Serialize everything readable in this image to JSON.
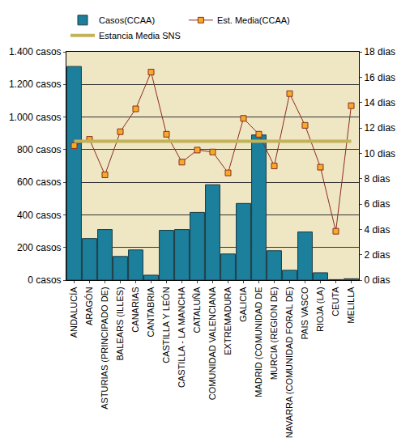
{
  "chart_data": {
    "type": "bar",
    "categories": [
      "ANDALUCÍA",
      "ARAGÓN",
      "ASTURIAS (PRINCIPADO DE)",
      "BALEARS (ILLES)",
      "CANARIAS",
      "CANTABRIA",
      "CASTILLA Y LEÓN",
      "CASTILLA - LA MANCHA",
      "CATALUÑA",
      "COMUNIDAD VALENCIANA",
      "EXTREMADURA",
      "GALICIA",
      "MADRID (COMUNIDAD DE",
      "MURCIA (REGION DE)",
      "NAVARRA (COMUNIDAD FORAL DE)",
      "PAIS VASCO",
      "RIOJA (LA)",
      "CEUTA",
      "MELILLA"
    ],
    "series": [
      {
        "name": "Casos(CCAA)",
        "type": "bar",
        "color": "#1c7f9c",
        "values": [
          1310,
          255,
          310,
          145,
          185,
          30,
          305,
          310,
          415,
          585,
          160,
          470,
          890,
          180,
          60,
          295,
          45,
          3,
          8
        ]
      },
      {
        "name": "Est. Media(CCAA)",
        "type": "line",
        "axis": "y2",
        "color": "#8b2e1f",
        "marker": "square",
        "line_style": "solid",
        "values": [
          10.6,
          11.1,
          8.3,
          11.7,
          13.5,
          16.4,
          11.5,
          9.3,
          10.25,
          10.1,
          8.45,
          12.75,
          11.5,
          9.0,
          14.7,
          12.2,
          8.9,
          3.85,
          13.75
        ]
      },
      {
        "name": "Estancia Media SNS",
        "type": "line",
        "axis": "y2",
        "color": "#c2b25a",
        "line_style": "solid",
        "values": [
          10.95,
          10.95,
          10.95,
          10.95,
          10.95,
          10.95,
          10.95,
          10.95,
          10.95,
          10.95,
          10.95,
          10.95,
          10.95,
          10.95,
          10.95,
          10.95,
          10.95,
          10.95,
          10.95
        ]
      }
    ],
    "ylim": [
      0,
      1400
    ],
    "yticks": [
      {
        "value": 0,
        "label": "0 casos"
      },
      {
        "value": 200,
        "label": "200 casos"
      },
      {
        "value": 400,
        "label": "400 casos"
      },
      {
        "value": 600,
        "label": "600 casos"
      },
      {
        "value": 800,
        "label": "800 casos"
      },
      {
        "value": 1000,
        "label": "1.000 casos"
      },
      {
        "value": 1200,
        "label": "1.200 casos"
      },
      {
        "value": 1400,
        "label": "1.400 casos"
      }
    ],
    "y2lim": [
      0,
      18
    ],
    "y2ticks": [
      {
        "value": 0,
        "label": "0 dias"
      },
      {
        "value": 2,
        "label": "2 dias"
      },
      {
        "value": 4,
        "label": "4 dias"
      },
      {
        "value": 6,
        "label": "6 dias"
      },
      {
        "value": 8,
        "label": "8 dias"
      },
      {
        "value": 10,
        "label": "10 dias"
      },
      {
        "value": 12,
        "label": "12 dias"
      },
      {
        "value": 14,
        "label": "14 dias"
      },
      {
        "value": 16,
        "label": "16 dias"
      },
      {
        "value": 18,
        "label": "18 dias"
      }
    ],
    "grid": true,
    "legend": "top"
  }
}
